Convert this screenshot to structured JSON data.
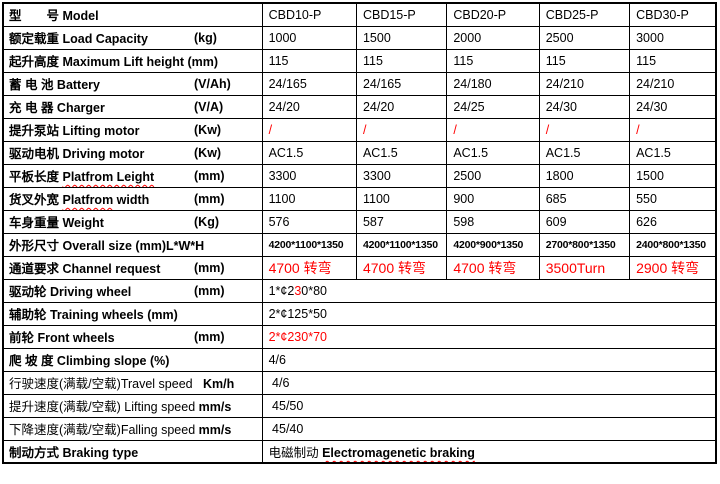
{
  "colors": {
    "red": "#ff0000",
    "text": "#000000",
    "border": "#000000",
    "background": "#ffffff"
  },
  "table": {
    "rows": [
      {
        "id": "model",
        "label": "型　　号 Model",
        "unit": "",
        "cells": [
          "CBD10-P",
          "CBD15-P",
          "CBD20-P",
          "CBD25-P",
          "CBD30-P"
        ],
        "cls": ""
      },
      {
        "id": "load-capacity",
        "label": "额定载重 Load Capacity",
        "unit": "(kg)",
        "cells": [
          "1000",
          "1500",
          "2000",
          "2500",
          "3000"
        ],
        "cls": ""
      },
      {
        "id": "lift-height",
        "label": "起升高度 Maximum Lift height (mm)",
        "unit": "",
        "cells": [
          "115",
          "115",
          "115",
          "115",
          "115"
        ],
        "cls": ""
      },
      {
        "id": "battery",
        "label": "蓄 电 池 Battery",
        "unit": "(V/Ah)",
        "cells": [
          "24/165",
          "24/165",
          "24/180",
          "24/210",
          "24/210"
        ],
        "cls": ""
      },
      {
        "id": "charger",
        "label": "充 电 器 Charger",
        "unit": "(V/A)",
        "cells": [
          "24/20",
          "24/20",
          "24/25",
          "24/30",
          "24/30"
        ],
        "cls": ""
      },
      {
        "id": "lifting-motor",
        "label": "提升泵站 Lifting motor",
        "unit": "(Kw)",
        "cells": [
          "/",
          "/",
          "/",
          "/",
          "/"
        ],
        "cls": "red"
      },
      {
        "id": "driving-motor",
        "label": "驱动电机 Driving motor",
        "unit": "(Kw)",
        "cells": [
          "AC1.5",
          "AC1.5",
          "AC1.5",
          "AC1.5",
          "AC1.5"
        ],
        "cls": ""
      },
      {
        "id": "platform-length",
        "label": [
          {
            "t": "平板长度 "
          },
          {
            "t": "Platfrom Leight",
            "w": true
          }
        ],
        "unit": "(mm)",
        "cells": [
          "3300",
          "3300",
          "2500",
          "1800",
          "1500"
        ],
        "cls": ""
      },
      {
        "id": "platform-width",
        "label": [
          {
            "t": "货叉外宽 "
          },
          {
            "t": "Platfrom",
            "w": true
          },
          {
            "t": " width"
          }
        ],
        "unit": "(mm)",
        "cells": [
          "1100",
          "1100",
          "900",
          "685",
          "550"
        ],
        "cls": ""
      },
      {
        "id": "weight",
        "label": "车身重量 Weight",
        "unit": "(Kg)",
        "cells": [
          "576",
          "587",
          "598",
          "609",
          "626"
        ],
        "cls": ""
      },
      {
        "id": "overall-size",
        "label": "外形尺寸 Overall size (mm)L*W*H",
        "unit": "",
        "cells": [
          "4200*1100*1350",
          "4200*1100*1350",
          "4200*900*1350",
          "2700*800*1350",
          "2400*800*1350"
        ],
        "cls": "small"
      },
      {
        "id": "channel-request",
        "label": "通道要求 Channel request",
        "unit": "(mm)",
        "cells": [
          "4700 转弯",
          "4700 转弯",
          "4700 转弯",
          "3500Turn",
          "2900 转弯"
        ],
        "cls": "red big"
      },
      {
        "id": "driving-wheel",
        "label": "驱动轮 Driving wheel",
        "unit": "(mm)",
        "merged": [
          {
            "t": "1*¢2"
          },
          {
            "t": "3",
            "c": "red"
          },
          {
            "t": "0*80"
          }
        ],
        "cls": ""
      },
      {
        "id": "training-wheels",
        "label": "辅助轮 Training wheels (mm)",
        "unit": "",
        "merged": [
          {
            "t": "2*¢125*50"
          }
        ],
        "cls": ""
      },
      {
        "id": "front-wheels",
        "label": "前轮 Front wheels",
        "unit": "(mm)",
        "merged": [
          {
            "t": "2*¢230*70",
            "c": "red"
          }
        ],
        "cls": ""
      },
      {
        "id": "climbing-slope",
        "label": "爬 坡 度 Climbing slope (%)",
        "unit": "",
        "merged": [
          {
            "t": "4/6"
          }
        ],
        "cls": ""
      },
      {
        "id": "travel-speed",
        "label": [
          {
            "t": "行驶速度(满载/空载)",
            "nb": true
          },
          {
            "t": "Travel speed",
            "nb": true
          },
          {
            "t": "   Km/h"
          }
        ],
        "unit": "",
        "merged": [
          {
            "t": " 4/6"
          }
        ],
        "cls": ""
      },
      {
        "id": "lifting-speed",
        "label": [
          {
            "t": "提升速度(满载/空载) ",
            "nb": true
          },
          {
            "t": "Lifting speed ",
            "nb": true
          },
          {
            "t": "mm/s"
          }
        ],
        "unit": "",
        "merged": [
          {
            "t": " 45/50"
          }
        ],
        "cls": ""
      },
      {
        "id": "falling-speed",
        "label": [
          {
            "t": "下降速度(满载/空载)",
            "nb": true
          },
          {
            "t": "Falling speed ",
            "nb": true
          },
          {
            "t": "mm/s"
          }
        ],
        "unit": "",
        "merged": [
          {
            "t": " 45/40"
          }
        ],
        "cls": ""
      },
      {
        "id": "braking-type",
        "label": "制动方式 Braking type",
        "unit": "",
        "merged": [
          {
            "t": "电磁制动 "
          },
          {
            "t": "Electromagenetic braking",
            "b": true,
            "w": true
          }
        ],
        "cls": ""
      }
    ]
  }
}
